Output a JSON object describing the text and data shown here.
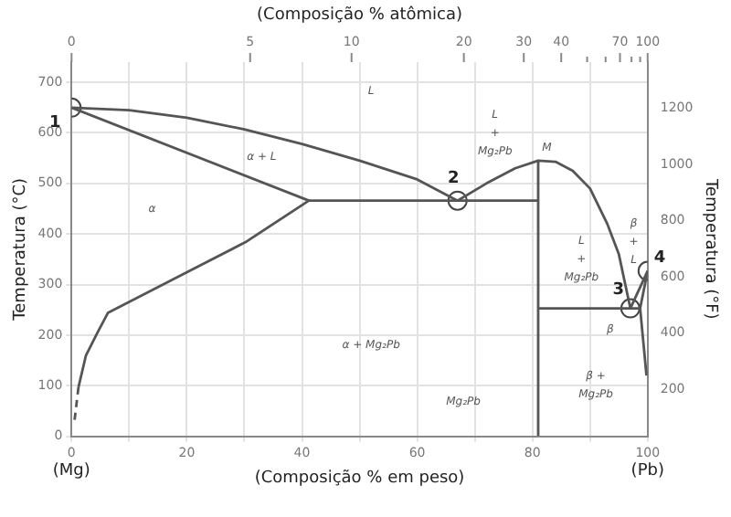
{
  "chart_data": {
    "type": "line",
    "xlabel": "(Composição % em peso)",
    "ylabel": "Temperatura (°C)",
    "y2label": "Temperatura (°F)",
    "xlim": [
      0,
      100
    ],
    "ylim": [
      0,
      740
    ],
    "y2lim": [
      32,
      1364
    ],
    "xticks": [
      0,
      {
        "value": 10,
        "label": null
      },
      20,
      {
        "value": 30,
        "label": null
      },
      40,
      {
        "value": 50,
        "label": null
      },
      60,
      {
        "value": 70,
        "label": null
      },
      80,
      {
        "value": 90,
        "label": null
      },
      100
    ],
    "yticks": [
      0,
      100,
      200,
      300,
      400,
      500,
      600,
      700
    ],
    "y2ticks": [
      200,
      400,
      600,
      800,
      1000,
      1200
    ],
    "grid": true,
    "legend": false,
    "marker": "none",
    "line_style": "solid",
    "series": [
      {
        "color": "#555555",
        "x": [
          0,
          10,
          20,
          30,
          40,
          50,
          60,
          67,
          72,
          77,
          81,
          84,
          87,
          90,
          93,
          95,
          97,
          100
        ],
        "values": [
          650,
          645,
          630,
          607,
          578,
          545,
          508,
          466,
          500,
          530,
          545,
          543,
          525,
          490,
          420,
          360,
          253,
          327
        ]
      },
      {
        "color": "#555555",
        "x": [
          0,
          41.2,
          30.2,
          19.8,
          6.3,
          4.5,
          2.5,
          1.2
        ],
        "values": [
          650,
          466,
          384,
          323,
          244,
          205,
          160,
          97
        ]
      },
      {
        "color": "#555555",
        "line_style": "dashed",
        "x": [
          1.2,
          0.5
        ],
        "values": [
          97,
          30
        ]
      },
      {
        "color": "#555555",
        "x": [
          41.2,
          81
        ],
        "values": [
          466,
          466
        ]
      },
      {
        "color": "#555555",
        "x": [
          81,
          81
        ],
        "values": [
          0,
          545
        ]
      },
      {
        "color": "#555555",
        "x": [
          81,
          98.7,
          100
        ],
        "values": [
          253,
          253,
          327
        ]
      },
      {
        "color": "#555555",
        "x": [
          98.7,
          99.8
        ],
        "values": [
          253,
          120
        ]
      },
      {
        "type": "scatter",
        "color": "#444444",
        "marker": "circle",
        "x": [
          0,
          67,
          97,
          100
        ],
        "values": [
          650,
          466,
          253,
          327
        ]
      }
    ],
    "annotations": [
      {
        "text": "1",
        "x": 0,
        "y": 650
      },
      {
        "text": "2",
        "x": 67,
        "y": 466
      },
      {
        "text": "3",
        "x": 97,
        "y": 253
      },
      {
        "text": "4",
        "x": 100,
        "y": 327
      },
      "L",
      "α + L",
      "α",
      "L\n+\nMg₂Pb",
      "M",
      "L\n+\nMg₂Pb",
      "β\n+\nL",
      "β",
      "α + Mg₂Pb",
      "β +\nMg₂Pb",
      "Mg₂Pb",
      "(Mg)",
      "(Pb)",
      "(Composição % atômica)",
      "0",
      "5",
      "10",
      "20",
      "30",
      "40",
      "70",
      "100"
    ]
  }
}
